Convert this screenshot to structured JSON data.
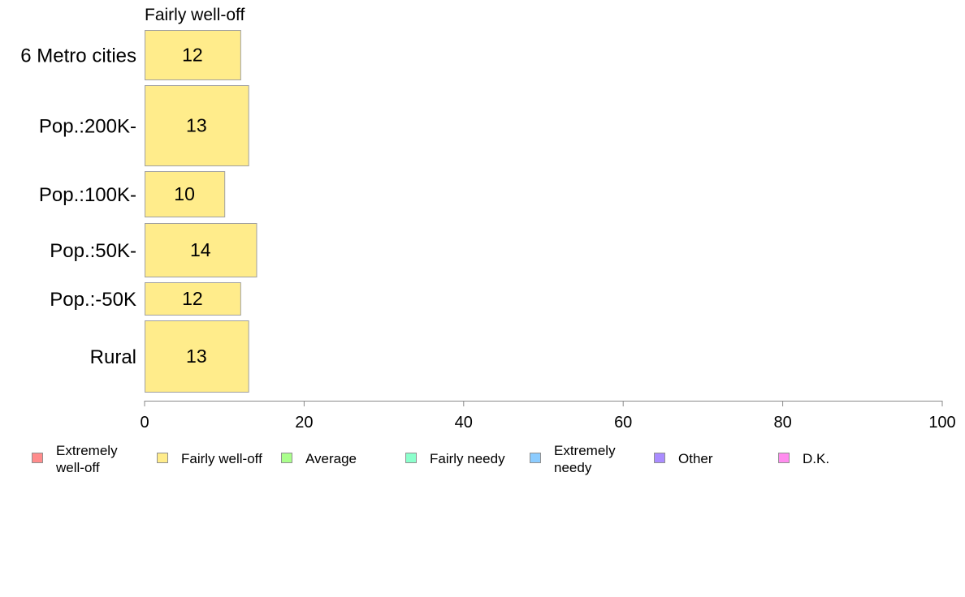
{
  "chart_data": {
    "type": "bar",
    "orientation": "horizontal",
    "title": "Fairly well-off",
    "categories": [
      "6 Metro cities",
      "Pop.:200K-",
      "Pop.:100K-",
      "Pop.:50K-",
      "Pop.:-50K",
      "Rural"
    ],
    "series": [
      {
        "name": "Fairly well-off",
        "values": [
          12,
          13,
          10,
          14,
          12,
          13
        ],
        "color": "#ffec8b"
      }
    ],
    "data_labels": [
      "12",
      "13",
      "10",
      "14",
      "12",
      "13"
    ],
    "xlim": [
      0,
      100
    ],
    "x_ticks": [
      0,
      20,
      40,
      60,
      80,
      100
    ],
    "x_tick_labels": [
      "0",
      "20",
      "40",
      "60",
      "80",
      "100"
    ],
    "grid": false,
    "legend_position": "bottom",
    "legend": [
      {
        "label_lines": [
          "Extremely",
          "well-off"
        ],
        "color": "#ff8c8c"
      },
      {
        "label_lines": [
          "Fairly well-off"
        ],
        "color": "#ffec8b"
      },
      {
        "label_lines": [
          "Average"
        ],
        "color": "#aaff8c"
      },
      {
        "label_lines": [
          "Fairly needy"
        ],
        "color": "#8cffcc"
      },
      {
        "label_lines": [
          "Extremely",
          "needy"
        ],
        "color": "#8cccff"
      },
      {
        "label_lines": [
          "Other"
        ],
        "color": "#aa8cff"
      },
      {
        "label_lines": [
          "D.K."
        ],
        "color": "#ff8cee"
      }
    ]
  }
}
